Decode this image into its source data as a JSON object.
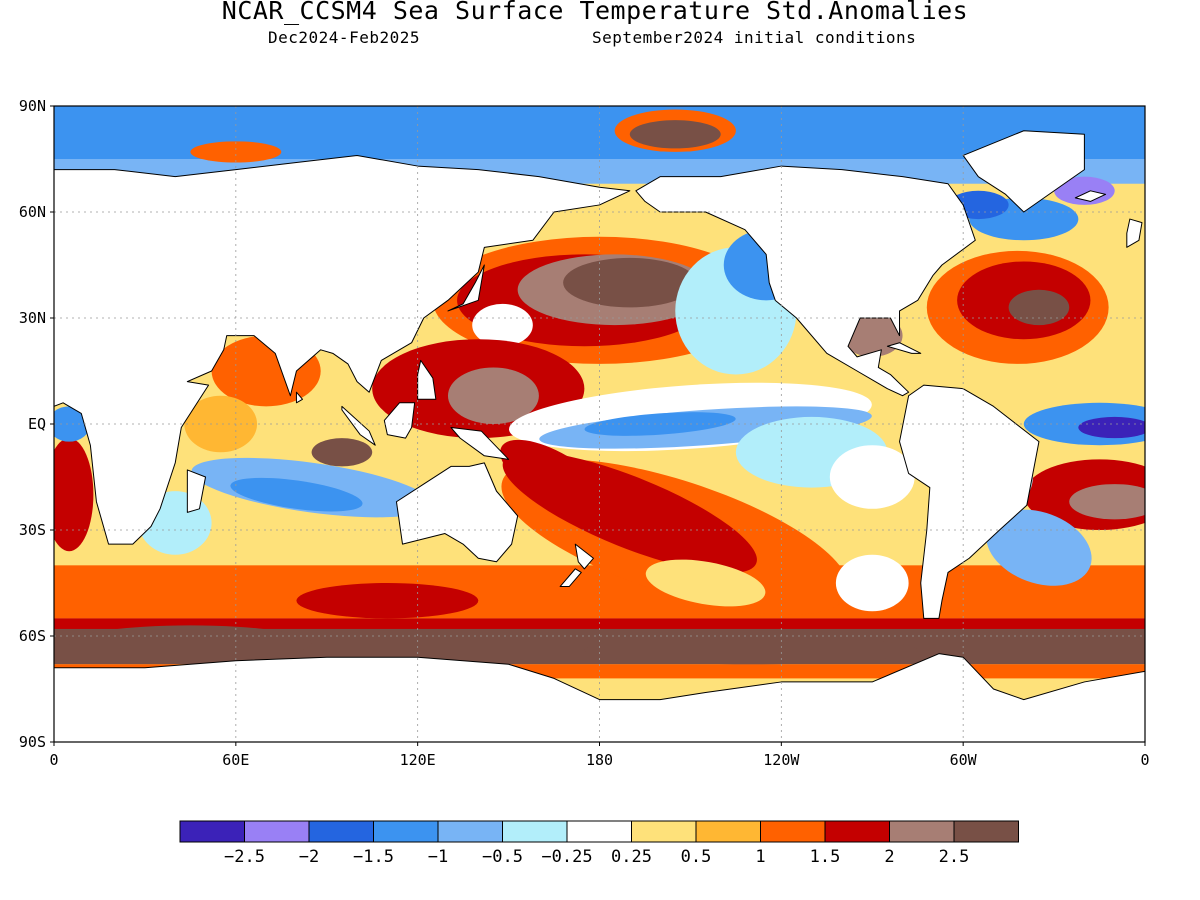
{
  "header": {
    "title": "NCAR_CCSM4 Sea Surface Temperature Std.Anomalies",
    "period": "Dec2024-Feb2025",
    "init": "September2024 initial conditions"
  },
  "axes": {
    "lat_labels": [
      "90N",
      "60N",
      "30N",
      "EQ",
      "30S",
      "60S",
      "90S"
    ],
    "lon_labels": [
      "0",
      "60E",
      "120E",
      "180",
      "120W",
      "60W",
      "0"
    ]
  },
  "colorbar": {
    "colors": [
      "#3b22b8",
      "#9980f5",
      "#2465e0",
      "#3c93f0",
      "#78b4f5",
      "#b2eefa",
      "#ffffff",
      "#fee17a",
      "#ffb733",
      "#ff6100",
      "#c40000",
      "#a77e74",
      "#785046"
    ],
    "labels": [
      "-2.5",
      "-2",
      "-1.5",
      "-1",
      "-0.5",
      "-0.25",
      "0.25",
      "0.5",
      "1",
      "1.5",
      "2",
      "2.5"
    ]
  },
  "chart_data": {
    "type": "heatmap",
    "variable": "Sea Surface Temperature Std.Anomalies",
    "xlim": [
      0,
      360
    ],
    "ylim": [
      -90,
      90
    ],
    "regions": [
      {
        "name": "central-east-equatorial-pacific",
        "lon": [
          150,
          270
        ],
        "lat": [
          -7,
          8
        ],
        "value": -1.0
      },
      {
        "name": "nw-pacific-blob",
        "lon": [
          150,
          210
        ],
        "lat": [
          25,
          45
        ],
        "value": 2.5
      },
      {
        "name": "central-south-pacific",
        "lon": [
          170,
          250
        ],
        "lat": [
          -45,
          -15
        ],
        "value": 1.0
      },
      {
        "name": "southern-ocean-belt",
        "lon": [
          0,
          360
        ],
        "lat": [
          -68,
          -58
        ],
        "value": 2.5
      },
      {
        "name": "north-atlantic",
        "lon": [
          285,
          345
        ],
        "lat": [
          20,
          45
        ],
        "value": 2.0
      },
      {
        "name": "eastern-equatorial-atlantic",
        "lon": [
          330,
          360
        ],
        "lat": [
          -5,
          5
        ],
        "value": -2.5
      },
      {
        "name": "indian-ocean-south",
        "lon": [
          45,
          110
        ],
        "lat": [
          -25,
          -10
        ],
        "value": -0.5
      },
      {
        "name": "arctic-greenland-sea",
        "lon": [
          195,
          235
        ],
        "lat": [
          78,
          87
        ],
        "value": 2.5
      },
      {
        "name": "arctic-ocean",
        "lon": [
          0,
          360
        ],
        "lat": [
          70,
          90
        ],
        "value": -0.5
      }
    ]
  }
}
